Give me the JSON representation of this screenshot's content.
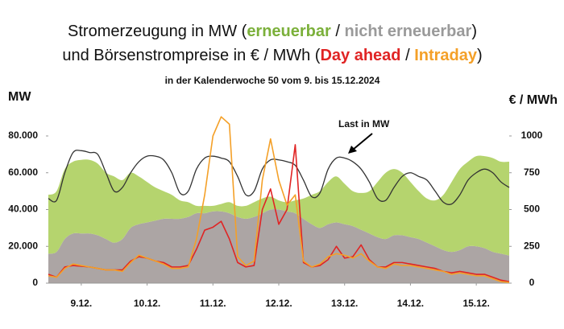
{
  "chart_data": {
    "type": "area_line",
    "title": [
      [
        "Stromerzeugung in MW (",
        " / ",
        ")"
      ],
      [
        "und Börsenstrompreise in € / MWh (",
        " / ",
        ")"
      ]
    ],
    "subtitle": "in der Kalenderwoche 50 vom 9. bis 15.12.2024",
    "y_label": "MW",
    "y2_label": "€ / MWh",
    "x": [
      0,
      3,
      6,
      9,
      12,
      15,
      18,
      21,
      24,
      27,
      30,
      33,
      36,
      39,
      42,
      45,
      48,
      51,
      54,
      57,
      60,
      63,
      66,
      69,
      72,
      75,
      78,
      81,
      84,
      87,
      90,
      93,
      96,
      99,
      102,
      105,
      108,
      111,
      114,
      117,
      120,
      123,
      126,
      129,
      132,
      135,
      138,
      141,
      144,
      147,
      150,
      153,
      156,
      159,
      162,
      165,
      168
    ],
    "xlim": [
      0,
      168
    ],
    "xticks": [
      {
        "value": 12,
        "label": "9.12."
      },
      {
        "value": 36,
        "label": "10.12."
      },
      {
        "value": 60,
        "label": "11.12."
      },
      {
        "value": 84,
        "label": "12.12."
      },
      {
        "value": 108,
        "label": "13.12."
      },
      {
        "value": 132,
        "label": "14.12."
      },
      {
        "value": 156,
        "label": "15.12."
      }
    ],
    "ylim": [
      0,
      96000
    ],
    "yticks": [
      0,
      {
        "value": 20000,
        "label": "20.000"
      },
      {
        "value": 40000,
        "label": "40.000"
      },
      {
        "value": 60000,
        "label": "60.000"
      },
      {
        "value": 80000,
        "label": "80.000"
      }
    ],
    "y2lim": [
      0,
      1200
    ],
    "y2ticks": [
      0,
      250,
      500,
      750,
      1000
    ],
    "series": [
      {
        "name": "nicht erneuerbar",
        "color": "#aca5a4",
        "kind": "stacked_area",
        "values": [
          16000,
          17000,
          24000,
          27000,
          27000,
          27000,
          26000,
          24000,
          22000,
          24000,
          30000,
          32000,
          33000,
          34000,
          35000,
          35000,
          35000,
          36000,
          38000,
          38000,
          39000,
          39000,
          38000,
          36000,
          35000,
          36000,
          38000,
          40000,
          40000,
          39000,
          38000,
          35000,
          32000,
          30000,
          32000,
          33000,
          32000,
          31000,
          29000,
          27000,
          25000,
          24000,
          26000,
          26000,
          25000,
          24000,
          22000,
          20000,
          18000,
          17000,
          18000,
          20000,
          20000,
          19000,
          17000,
          16000,
          15000
        ]
      },
      {
        "name": "erneuerbar",
        "color": "#b5d46e",
        "kind": "stacked_area",
        "values": [
          32000,
          33000,
          38000,
          39000,
          40000,
          40000,
          39000,
          36000,
          36000,
          32000,
          30000,
          26000,
          22000,
          18000,
          15000,
          13000,
          10000,
          8000,
          4000,
          4000,
          3000,
          4000,
          6000,
          6000,
          7000,
          8000,
          8000,
          7000,
          5000,
          5000,
          7000,
          11000,
          16000,
          20000,
          23000,
          25000,
          22000,
          19000,
          20000,
          23000,
          30000,
          36000,
          36000,
          34000,
          30000,
          26000,
          24000,
          25000,
          30000,
          38000,
          44000,
          46000,
          49000,
          50000,
          51000,
          50000,
          51000
        ]
      },
      {
        "name": "Last in MW",
        "color": "#333333",
        "kind": "line",
        "values": [
          46000,
          45000,
          60000,
          71000,
          72000,
          71000,
          70000,
          60000,
          50000,
          52000,
          60000,
          66000,
          69000,
          69000,
          67000,
          60000,
          49000,
          50000,
          62000,
          68000,
          69000,
          68000,
          66000,
          58000,
          48000,
          50000,
          62000,
          67000,
          67000,
          66000,
          64000,
          56000,
          47000,
          49000,
          62000,
          68000,
          68000,
          66000,
          62000,
          55000,
          46000,
          45000,
          52000,
          58000,
          60000,
          58000,
          56000,
          50000,
          44000,
          43000,
          48000,
          56000,
          60000,
          62000,
          60000,
          55000,
          52000
        ]
      },
      {
        "name": "Day ahead",
        "color": "#e02424",
        "kind": "line",
        "axis": "y2",
        "values": [
          60,
          40,
          110,
          120,
          115,
          110,
          100,
          90,
          90,
          90,
          150,
          180,
          170,
          150,
          140,
          110,
          110,
          120,
          230,
          360,
          380,
          420,
          300,
          140,
          110,
          120,
          500,
          640,
          400,
          500,
          940,
          140,
          110,
          120,
          160,
          250,
          170,
          180,
          260,
          160,
          110,
          110,
          140,
          140,
          130,
          120,
          110,
          100,
          80,
          70,
          80,
          70,
          60,
          60,
          40,
          20,
          10
        ]
      },
      {
        "name": "Intraday",
        "color": "#f4a028",
        "kind": "line",
        "axis": "y2",
        "values": [
          50,
          40,
          100,
          130,
          120,
          110,
          100,
          90,
          90,
          80,
          140,
          190,
          170,
          150,
          130,
          100,
          100,
          110,
          300,
          600,
          1000,
          1130,
          1080,
          180,
          120,
          150,
          700,
          980,
          700,
          530,
          600,
          150,
          110,
          130,
          180,
          200,
          190,
          170,
          200,
          150,
          110,
          100,
          130,
          120,
          120,
          110,
          100,
          90,
          80,
          60,
          70,
          60,
          50,
          50,
          30,
          10,
          5
        ]
      }
    ]
  }
}
